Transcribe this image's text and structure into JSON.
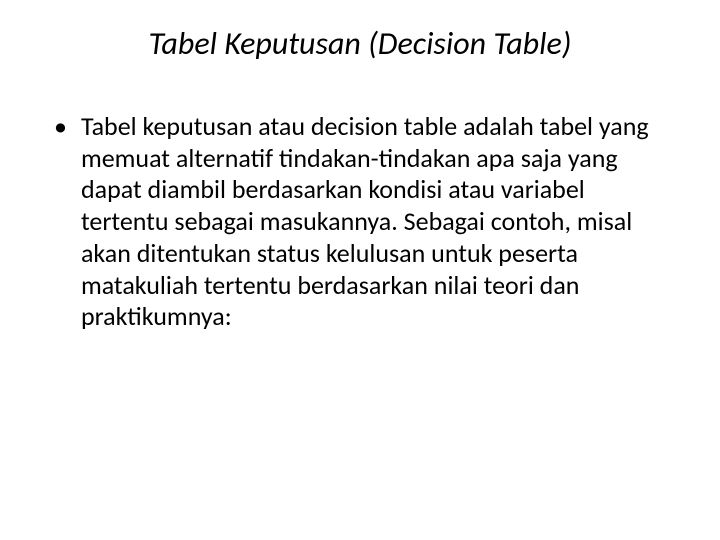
{
  "slide": {
    "title": "Tabel Keputusan (Decision Table)",
    "bullet_char": "•",
    "body_text": "Tabel keputusan atau decision table adalah tabel yang memuat alternatif tindakan-tindakan apa saja yang dapat diambil berdasarkan kondisi atau variabel tertentu sebagai masukannya. Sebagai contoh, misal akan ditentukan status kelulusan untuk peserta matakuliah tertentu berdasarkan nilai teori dan praktikumnya:",
    "background_color": "#ffffff",
    "text_color": "#000000",
    "title_fontsize": 32,
    "body_fontsize": 26,
    "title_font_style": "italic",
    "font_family": "Calibri"
  }
}
